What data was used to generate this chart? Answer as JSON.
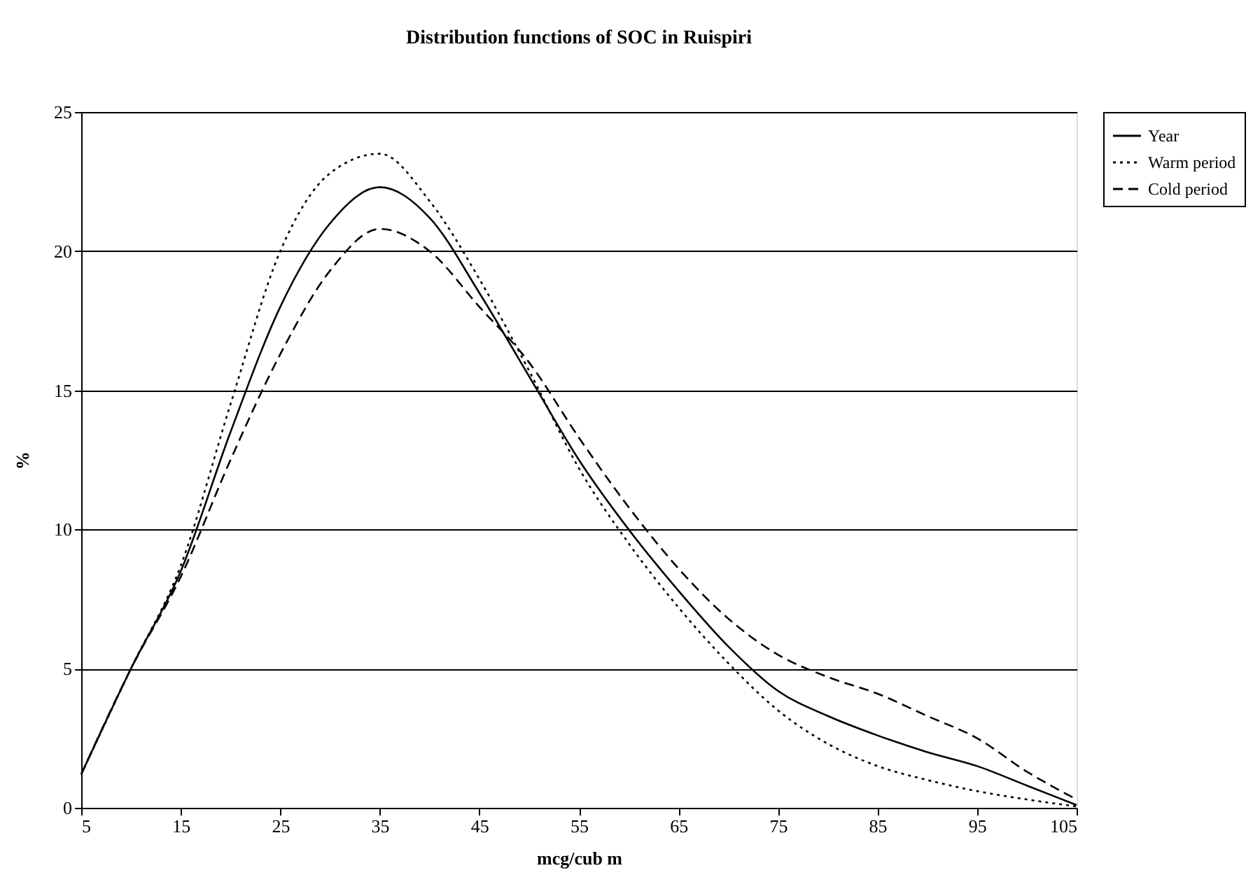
{
  "chart_data": {
    "type": "line",
    "title": "Distribution functions of SOC in Ruispiri",
    "xlabel": "mcg/cub m",
    "ylabel": "%",
    "x": [
      5,
      10,
      15,
      20,
      25,
      30,
      35,
      40,
      45,
      50,
      55,
      60,
      65,
      70,
      75,
      80,
      85,
      90,
      95,
      100,
      105
    ],
    "xlim": [
      5,
      105
    ],
    "xticks": [
      5,
      15,
      25,
      35,
      45,
      55,
      65,
      75,
      85,
      95,
      105
    ],
    "ylim": [
      0,
      25
    ],
    "yticks": [
      0,
      5,
      10,
      15,
      20,
      25
    ],
    "grid": "y",
    "legend": "right",
    "marker": "none",
    "series": [
      {
        "name": "Year",
        "color": "#000000",
        "line_style": "solid",
        "values": [
          1.2,
          5,
          8.5,
          13.5,
          18,
          21,
          22.3,
          21.2,
          18.5,
          15.5,
          12.5,
          10,
          7.8,
          5.8,
          4.2,
          3.3,
          2.6,
          2.0,
          1.5,
          0.8,
          0.1
        ]
      },
      {
        "name": "Warm period",
        "color": "#000000",
        "line_style": "dotted",
        "values": [
          1.2,
          5,
          8.7,
          14.5,
          20,
          22.8,
          23.5,
          21.8,
          19,
          15.7,
          12.2,
          9.5,
          7.2,
          5.2,
          3.5,
          2.3,
          1.5,
          1.0,
          0.6,
          0.3,
          0.05
        ]
      },
      {
        "name": "Cold period",
        "color": "#000000",
        "line_style": "dashed",
        "values": [
          1.2,
          5,
          8.3,
          12.5,
          16.3,
          19.3,
          20.8,
          20,
          18,
          16,
          13.3,
          10.8,
          8.6,
          6.8,
          5.5,
          4.7,
          4.1,
          3.3,
          2.5,
          1.3,
          0.3
        ]
      }
    ]
  }
}
